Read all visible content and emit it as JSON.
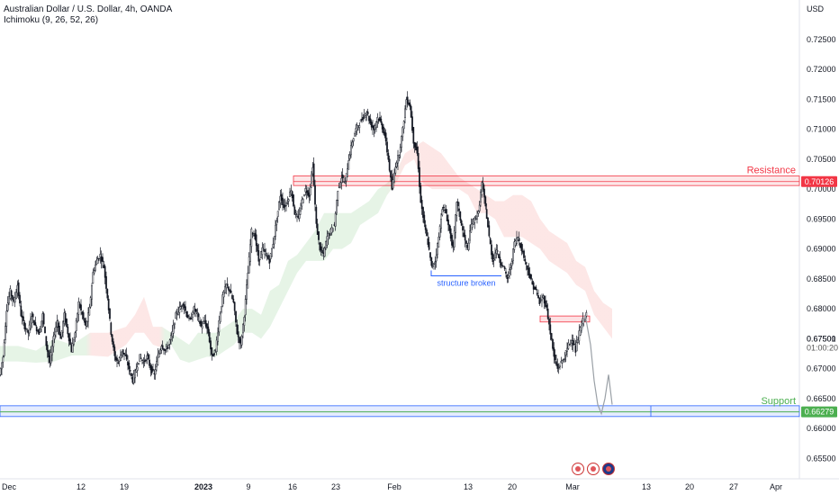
{
  "header": {
    "title": "Australian Dollar / U.S. Dollar, 4h, OANDA",
    "indicator": "Ichimoku (9, 26, 52, 26)"
  },
  "chart_data": {
    "type": "candlestick",
    "currency": "USD",
    "y_ticks": [
      "0.72500",
      "0.72000",
      "0.71500",
      "0.71000",
      "0.70500",
      "0.70000",
      "0.69500",
      "0.69000",
      "0.68500",
      "0.68000",
      "0.67500",
      "0.67000",
      "0.66500",
      "0.66000",
      "0.65500"
    ],
    "ylim": [
      0.6525,
      0.731
    ],
    "x_ticks": [
      "Dec",
      "12",
      "19",
      "2023",
      "9",
      "16",
      "23",
      "Feb",
      "13",
      "20",
      "Mar",
      "13",
      "20",
      "27",
      "Apr"
    ],
    "price_path": [
      [
        0,
        0.669
      ],
      [
        4,
        0.672
      ],
      [
        8,
        0.68
      ],
      [
        12,
        0.683
      ],
      [
        16,
        0.681
      ],
      [
        20,
        0.684
      ],
      [
        24,
        0.679
      ],
      [
        28,
        0.677
      ],
      [
        32,
        0.676
      ],
      [
        36,
        0.679
      ],
      [
        40,
        0.677
      ],
      [
        44,
        0.676
      ],
      [
        48,
        0.679
      ],
      [
        52,
        0.674
      ],
      [
        56,
        0.671
      ],
      [
        60,
        0.675
      ],
      [
        64,
        0.678
      ],
      [
        68,
        0.675
      ],
      [
        72,
        0.679
      ],
      [
        76,
        0.676
      ],
      [
        80,
        0.673
      ],
      [
        84,
        0.676
      ],
      [
        88,
        0.681
      ],
      [
        92,
        0.679
      ],
      [
        96,
        0.677
      ],
      [
        100,
        0.68
      ],
      [
        104,
        0.686
      ],
      [
        108,
        0.688
      ],
      [
        112,
        0.689
      ],
      [
        116,
        0.687
      ],
      [
        120,
        0.682
      ],
      [
        124,
        0.676
      ],
      [
        128,
        0.672
      ],
      [
        132,
        0.671
      ],
      [
        136,
        0.673
      ],
      [
        140,
        0.672
      ],
      [
        144,
        0.67
      ],
      [
        148,
        0.668
      ],
      [
        152,
        0.67
      ],
      [
        156,
        0.672
      ],
      [
        160,
        0.671
      ],
      [
        164,
        0.672
      ],
      [
        168,
        0.67
      ],
      [
        172,
        0.669
      ],
      [
        176,
        0.672
      ],
      [
        180,
        0.674
      ],
      [
        184,
        0.673
      ],
      [
        188,
        0.674
      ],
      [
        192,
        0.676
      ],
      [
        196,
        0.679
      ],
      [
        200,
        0.68
      ],
      [
        204,
        0.681
      ],
      [
        208,
        0.679
      ],
      [
        212,
        0.678
      ],
      [
        216,
        0.68
      ],
      [
        220,
        0.679
      ],
      [
        224,
        0.677
      ],
      [
        228,
        0.678
      ],
      [
        232,
        0.676
      ],
      [
        236,
        0.672
      ],
      [
        240,
        0.673
      ],
      [
        244,
        0.678
      ],
      [
        248,
        0.682
      ],
      [
        252,
        0.684
      ],
      [
        256,
        0.683
      ],
      [
        260,
        0.681
      ],
      [
        264,
        0.676
      ],
      [
        268,
        0.674
      ],
      [
        272,
        0.679
      ],
      [
        276,
        0.686
      ],
      [
        280,
        0.693
      ],
      [
        284,
        0.692
      ],
      [
        288,
        0.688
      ],
      [
        292,
        0.69
      ],
      [
        296,
        0.689
      ],
      [
        300,
        0.688
      ],
      [
        304,
        0.691
      ],
      [
        308,
        0.695
      ],
      [
        312,
        0.699
      ],
      [
        316,
        0.697
      ],
      [
        320,
        0.698
      ],
      [
        324,
        0.7
      ],
      [
        328,
        0.696
      ],
      [
        332,
        0.695
      ],
      [
        336,
        0.698
      ],
      [
        340,
        0.7
      ],
      [
        344,
        0.699
      ],
      [
        348,
        0.704
      ],
      [
        352,
        0.694
      ],
      [
        356,
        0.69
      ],
      [
        360,
        0.689
      ],
      [
        364,
        0.692
      ],
      [
        368,
        0.693
      ],
      [
        372,
        0.694
      ],
      [
        376,
        0.7
      ],
      [
        380,
        0.702
      ],
      [
        384,
        0.701
      ],
      [
        388,
        0.705
      ],
      [
        392,
        0.708
      ],
      [
        396,
        0.71
      ],
      [
        400,
        0.711
      ],
      [
        404,
        0.712
      ],
      [
        408,
        0.713
      ],
      [
        412,
        0.711
      ],
      [
        416,
        0.71
      ],
      [
        420,
        0.712
      ],
      [
        424,
        0.711
      ],
      [
        428,
        0.709
      ],
      [
        432,
        0.705
      ],
      [
        436,
        0.7
      ],
      [
        440,
        0.704
      ],
      [
        444,
        0.706
      ],
      [
        448,
        0.71
      ],
      [
        452,
        0.715
      ],
      [
        456,
        0.714
      ],
      [
        460,
        0.708
      ],
      [
        464,
        0.706
      ],
      [
        468,
        0.698
      ],
      [
        472,
        0.694
      ],
      [
        476,
        0.691
      ],
      [
        480,
        0.687
      ],
      [
        484,
        0.688
      ],
      [
        488,
        0.692
      ],
      [
        492,
        0.697
      ],
      [
        496,
        0.696
      ],
      [
        500,
        0.693
      ],
      [
        504,
        0.69
      ],
      [
        508,
        0.698
      ],
      [
        512,
        0.695
      ],
      [
        516,
        0.692
      ],
      [
        520,
        0.69
      ],
      [
        524,
        0.694
      ],
      [
        528,
        0.695
      ],
      [
        532,
        0.696
      ],
      [
        536,
        0.701
      ],
      [
        540,
        0.697
      ],
      [
        544,
        0.692
      ],
      [
        548,
        0.688
      ],
      [
        552,
        0.69
      ],
      [
        556,
        0.688
      ],
      [
        560,
        0.687
      ],
      [
        564,
        0.685
      ],
      [
        568,
        0.687
      ],
      [
        572,
        0.691
      ],
      [
        576,
        0.692
      ],
      [
        580,
        0.69
      ],
      [
        584,
        0.688
      ],
      [
        588,
        0.686
      ],
      [
        592,
        0.684
      ],
      [
        596,
        0.683
      ],
      [
        600,
        0.681
      ],
      [
        604,
        0.682
      ],
      [
        608,
        0.68
      ],
      [
        612,
        0.676
      ],
      [
        616,
        0.672
      ],
      [
        620,
        0.67
      ],
      [
        624,
        0.671
      ],
      [
        628,
        0.672
      ],
      [
        632,
        0.674
      ],
      [
        636,
        0.675
      ],
      [
        640,
        0.673
      ],
      [
        644,
        0.676
      ],
      [
        648,
        0.678
      ],
      [
        652,
        0.679
      ]
    ],
    "projection_path": [
      [
        646,
        0.676
      ],
      [
        650,
        0.679
      ],
      [
        656,
        0.674
      ],
      [
        660,
        0.668
      ],
      [
        664,
        0.664
      ],
      [
        668,
        0.6625
      ],
      [
        672,
        0.665
      ],
      [
        676,
        0.669
      ],
      [
        680,
        0.664
      ]
    ],
    "cloud": [
      [
        0,
        0.6712,
        0.6738
      ],
      [
        20,
        0.6712,
        0.6738
      ],
      [
        40,
        0.671,
        0.673
      ],
      [
        60,
        0.6712,
        0.675
      ],
      [
        80,
        0.6722,
        0.674
      ],
      [
        100,
        0.6722,
        0.676
      ],
      [
        120,
        0.672,
        0.676
      ],
      [
        140,
        0.674,
        0.677
      ],
      [
        150,
        0.676,
        0.679
      ],
      [
        160,
        0.676,
        0.682
      ],
      [
        170,
        0.674,
        0.677
      ],
      [
        180,
        0.6735,
        0.677
      ],
      [
        190,
        0.674,
        0.676
      ],
      [
        200,
        0.6715,
        0.675
      ],
      [
        210,
        0.671,
        0.674
      ],
      [
        220,
        0.6715,
        0.676
      ],
      [
        230,
        0.672,
        0.676
      ],
      [
        240,
        0.672,
        0.676
      ],
      [
        250,
        0.673,
        0.677
      ],
      [
        260,
        0.674,
        0.678
      ],
      [
        270,
        0.676,
        0.68
      ],
      [
        280,
        0.676,
        0.68
      ],
      [
        290,
        0.675,
        0.679
      ],
      [
        300,
        0.677,
        0.683
      ],
      [
        310,
        0.68,
        0.684
      ],
      [
        320,
        0.683,
        0.688
      ],
      [
        330,
        0.686,
        0.689
      ],
      [
        340,
        0.688,
        0.691
      ],
      [
        350,
        0.688,
        0.693
      ],
      [
        360,
        0.688,
        0.696
      ],
      [
        370,
        0.69,
        0.696
      ],
      [
        380,
        0.69,
        0.696
      ],
      [
        390,
        0.691,
        0.696
      ],
      [
        400,
        0.694,
        0.697
      ],
      [
        410,
        0.695,
        0.698
      ],
      [
        420,
        0.696,
        0.7
      ],
      [
        430,
        0.699,
        0.701
      ],
      [
        440,
        0.701,
        0.703
      ],
      [
        450,
        0.704,
        0.706
      ],
      [
        460,
        0.705,
        0.707
      ],
      [
        470,
        0.701,
        0.708
      ],
      [
        480,
        0.7,
        0.707
      ],
      [
        490,
        0.7,
        0.706
      ],
      [
        500,
        0.7,
        0.704
      ],
      [
        510,
        0.7,
        0.702
      ],
      [
        520,
        0.699,
        0.701
      ],
      [
        530,
        0.696,
        0.7
      ],
      [
        540,
        0.696,
        0.699
      ],
      [
        550,
        0.695,
        0.698
      ],
      [
        560,
        0.692,
        0.698
      ],
      [
        570,
        0.692,
        0.699
      ],
      [
        580,
        0.692,
        0.699
      ],
      [
        590,
        0.691,
        0.698
      ],
      [
        600,
        0.69,
        0.695
      ],
      [
        610,
        0.688,
        0.693
      ],
      [
        620,
        0.687,
        0.692
      ],
      [
        630,
        0.686,
        0.691
      ],
      [
        640,
        0.684,
        0.688
      ],
      [
        650,
        0.683,
        0.687
      ],
      [
        660,
        0.679,
        0.683
      ],
      [
        670,
        0.677,
        0.681
      ],
      [
        680,
        0.675,
        0.68
      ]
    ],
    "resistance": {
      "label": "Resistance",
      "price_label": "0.70126",
      "price": 0.70126,
      "low": 0.7006,
      "high": 0.7022
    },
    "support": {
      "label": "Support",
      "price_label": "0.66279",
      "price": 0.66279,
      "low": 0.662,
      "high": 0.6638
    },
    "last_price": {
      "price_label": "0.67501",
      "countdown": "01:00:20",
      "price": 0.67501
    },
    "order_block": {
      "x": [
        600,
        655
      ],
      "low": 0.6778,
      "high": 0.6788
    },
    "annotation": {
      "text": "structure broken",
      "price": 0.6855,
      "x": [
        479,
        557
      ]
    },
    "colors": {
      "up": "#26a69a",
      "down": "#ef5350",
      "candle": "#131722",
      "resistance": "#f23645",
      "support": "#4caf50",
      "support_band": "#2962ff",
      "annotation": "#2962ff",
      "cloud_green": "#4caf50",
      "cloud_red": "#ef5350"
    }
  }
}
